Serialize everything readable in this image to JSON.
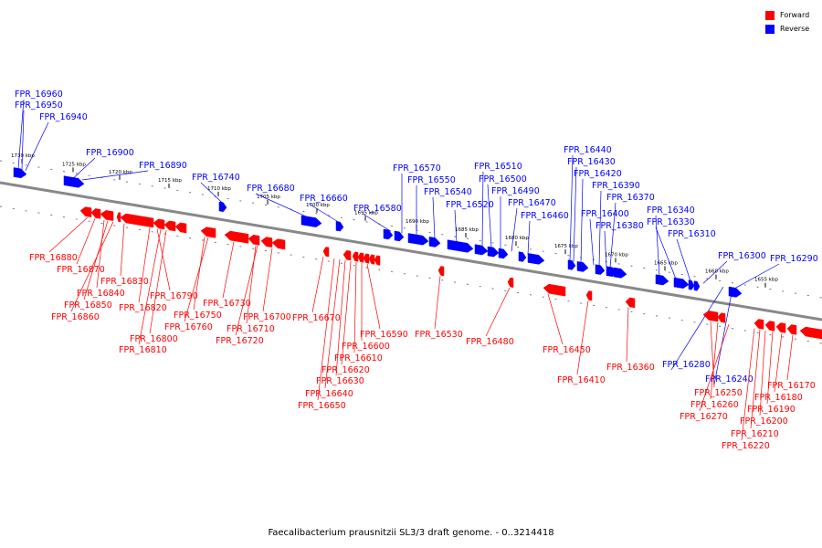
{
  "caption": "Faecalibacterium prausnitzii SL3/3 draft genome. - 0..3214418",
  "legend": [
    {
      "label": "Forward",
      "color": "#ff0000"
    },
    {
      "label": "Reverse",
      "color": "#0000ff"
    }
  ],
  "colors": {
    "forward": "#ff0000",
    "reverse": "#0000ff",
    "axis": "#888888"
  },
  "scale_labels": [
    "1730 kbp",
    "1725 kbp",
    "1720 kbp",
    "1715 kbp",
    "1710 kbp",
    "1705 kbp",
    "1700 kbp",
    "1695 kbp",
    "1690 kbp",
    "1685 kbp",
    "1680 kbp",
    "1675 kbp",
    "1670 kbp",
    "1665 kbp",
    "1660 kbp",
    "1655 kbp"
  ],
  "reverse_genes": [
    "FPR_16960",
    "FPR_16950",
    "FPR_16940",
    "FPR_16900",
    "FPR_16890",
    "FPR_16740",
    "FPR_16680",
    "FPR_16660",
    "FPR_16580",
    "FPR_16570",
    "FPR_16550",
    "FPR_16540",
    "FPR_16520",
    "FPR_16510",
    "FPR_16500",
    "FPR_16490",
    "FPR_16470",
    "FPR_16460",
    "FPR_16440",
    "FPR_16430",
    "FPR_16420",
    "FPR_16390",
    "FPR_16370",
    "FPR_16400",
    "FPR_16380",
    "FPR_16340",
    "FPR_16330",
    "FPR_16310",
    "FPR_16300",
    "FPR_16290",
    "FPR_16280",
    "FPR_16240"
  ],
  "forward_genes": [
    "FPR_16880",
    "FPR_16870",
    "FPR_16840",
    "FPR_16850",
    "FPR_16860",
    "FPR_16830",
    "FPR_16820",
    "FPR_16790",
    "FPR_16800",
    "FPR_16810",
    "FPR_16750",
    "FPR_16760",
    "FPR_16730",
    "FPR_16710",
    "FPR_16720",
    "FPR_16700",
    "FPR_16670",
    "FPR_16590",
    "FPR_16600",
    "FPR_16610",
    "FPR_16620",
    "FPR_16630",
    "FPR_16640",
    "FPR_16650",
    "FPR_16530",
    "FPR_16480",
    "FPR_16450",
    "FPR_16410",
    "FPR_16360",
    "FPR_16250",
    "FPR_16260",
    "FPR_16270",
    "FPR_16170",
    "FPR_16180",
    "FPR_16190",
    "FPR_16200",
    "FPR_16210",
    "FPR_16220"
  ]
}
